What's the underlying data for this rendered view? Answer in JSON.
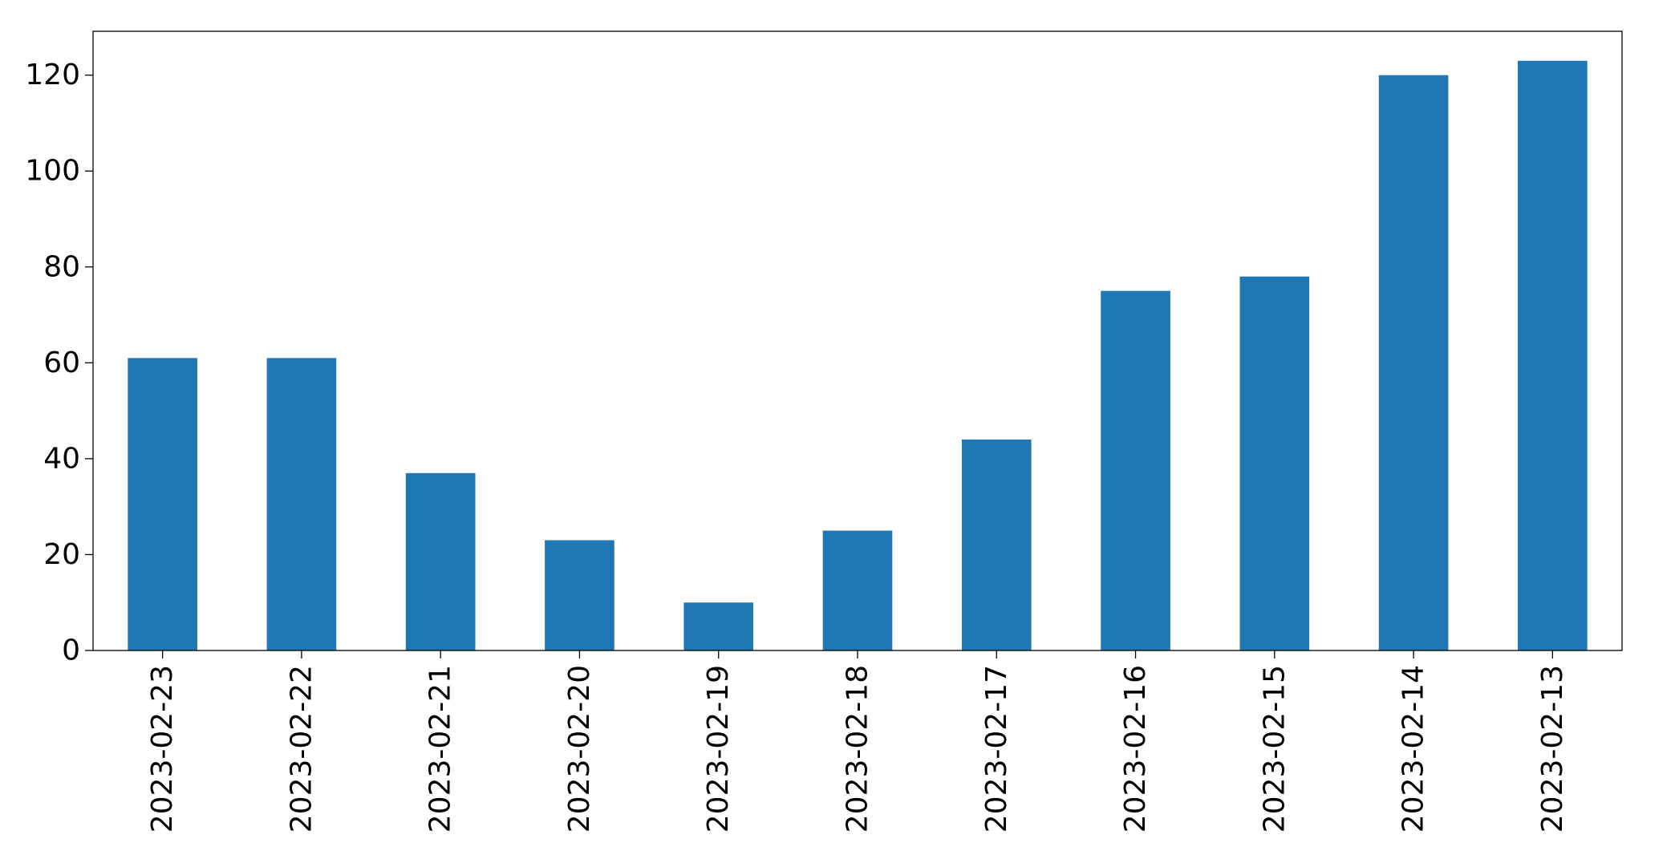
{
  "chart_data": {
    "type": "bar",
    "title": "",
    "xlabel": "",
    "ylabel": "",
    "categories": [
      "2023-02-23",
      "2023-02-22",
      "2023-02-21",
      "2023-02-20",
      "2023-02-19",
      "2023-02-18",
      "2023-02-17",
      "2023-02-16",
      "2023-02-15",
      "2023-02-14",
      "2023-02-13"
    ],
    "values": [
      61,
      61,
      37,
      23,
      10,
      25,
      44,
      75,
      78,
      120,
      123
    ],
    "ylim": [
      0,
      129.15
    ],
    "yticks": [
      0,
      20,
      40,
      60,
      80,
      100,
      120
    ],
    "bar_color": "#1f77b4",
    "grid": false,
    "legend": "none",
    "x_tick_rotation": "vertical"
  }
}
